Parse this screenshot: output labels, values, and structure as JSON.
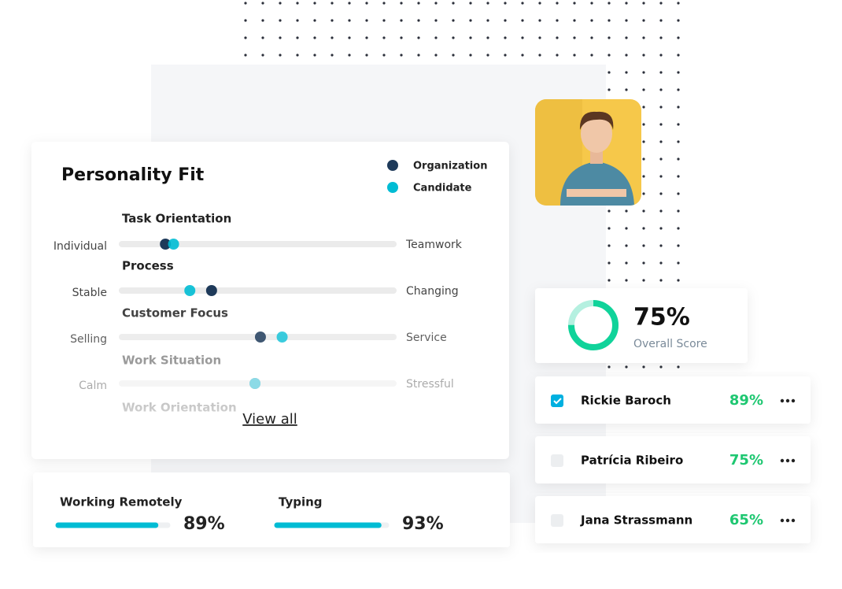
{
  "personality_fit": {
    "title": "Personality Fit",
    "legend": [
      {
        "name": "Organization",
        "color": "#1e3a5a"
      },
      {
        "name": "Candidate",
        "color": "#00bcd4"
      }
    ],
    "rows": [
      {
        "title": "Task Orientation",
        "left": "Individual",
        "right": "Teamwork",
        "organization": 16,
        "candidate": 19
      },
      {
        "title": "Process",
        "left": "Stable",
        "right": "Changing",
        "organization": 33,
        "candidate": 25
      },
      {
        "title": "Customer Focus",
        "left": "Selling",
        "right": "Service",
        "organization": 51,
        "candidate": 59
      },
      {
        "title": "Work Situation",
        "left": "Calm",
        "right": "Stressful",
        "organization": 49,
        "candidate": 49
      },
      {
        "title": "Work Orientation"
      }
    ],
    "link": "View all"
  },
  "skills": [
    {
      "name": "Working Remotely",
      "score": {
        "value": 89,
        "label": "89%"
      }
    },
    {
      "name": "Typing",
      "score": {
        "value": 93,
        "label": "93%"
      }
    }
  ],
  "overall": {
    "score": {
      "value": 75,
      "label": "75%"
    },
    "label": "Overall Score"
  },
  "candidates": [
    {
      "name": "Rickie Baroch",
      "score": "89%",
      "checked": true
    },
    {
      "name": "Patrícia Ribeiro",
      "score": "75%",
      "checked": false
    },
    {
      "name": "Jana Strassmann",
      "score": "65%",
      "checked": false
    }
  ]
}
